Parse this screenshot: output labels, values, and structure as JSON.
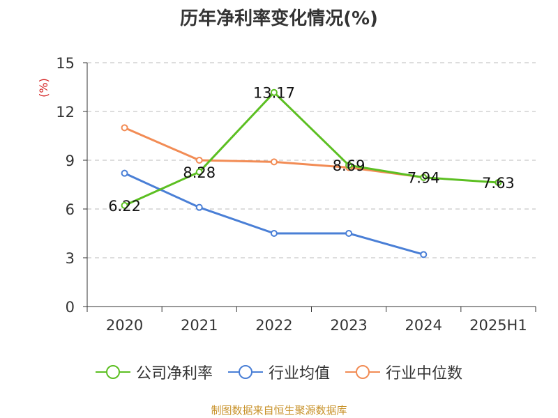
{
  "title": "历年净利率变化情况(%)",
  "source": "制图数据来自恒生聚源数据库",
  "colors": {
    "company": "#5cbf22",
    "industry_avg": "#4a7fd6",
    "industry_median": "#f28c55"
  },
  "chart_data": {
    "type": "line",
    "title": "历年净利率变化情况(%)",
    "ylabel": "(%)",
    "xlabel": "",
    "ylim": [
      0,
      15
    ],
    "yticks": [
      0,
      3,
      6,
      9,
      12,
      15
    ],
    "grid": true,
    "legend_position": "bottom",
    "categories": [
      "2020",
      "2021",
      "2022",
      "2023",
      "2024",
      "2025H1"
    ],
    "series": [
      {
        "name": "公司净利率",
        "color": "#5cbf22",
        "values": [
          6.22,
          8.28,
          13.17,
          8.69,
          7.94,
          7.63
        ],
        "show_labels": true
      },
      {
        "name": "行业均值",
        "color": "#4a7fd6",
        "values": [
          8.2,
          6.1,
          4.5,
          4.5,
          3.2,
          null
        ],
        "show_labels": false
      },
      {
        "name": "行业中位数",
        "color": "#f28c55",
        "values": [
          11.0,
          9.0,
          8.9,
          8.55,
          7.95,
          null
        ],
        "show_labels": false
      }
    ]
  }
}
